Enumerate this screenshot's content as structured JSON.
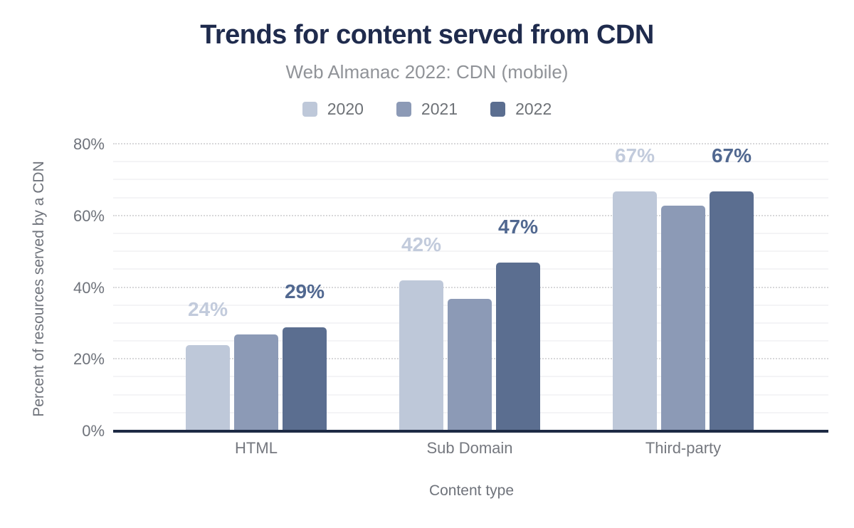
{
  "chart_data": {
    "type": "bar",
    "title": "Trends for content served from CDN",
    "subtitle": "Web Almanac 2022: CDN (mobile)",
    "xlabel": "Content type",
    "ylabel": "Percent of resources served by a CDN",
    "categories": [
      "HTML",
      "Sub Domain",
      "Third-party"
    ],
    "series": [
      {
        "name": "2020",
        "color": "#bec8d9",
        "label_color": "#c2cbdc",
        "show_labels": true,
        "values": [
          24,
          42,
          67
        ],
        "data_labels": [
          "24%",
          "42%",
          "67%"
        ]
      },
      {
        "name": "2021",
        "color": "#8c9ab6",
        "label_color": "#8c9ab6",
        "show_labels": false,
        "values": [
          27,
          37,
          63
        ],
        "data_labels": [
          "",
          "",
          ""
        ]
      },
      {
        "name": "2022",
        "color": "#5b6e90",
        "label_color": "#516890",
        "show_labels": true,
        "values": [
          29,
          47,
          67
        ],
        "data_labels": [
          "29%",
          "47%",
          "67%"
        ]
      }
    ],
    "ylim": [
      0,
      80
    ],
    "y_ticks": [
      {
        "value": 0,
        "label": "0%"
      },
      {
        "value": 20,
        "label": "20%"
      },
      {
        "value": 40,
        "label": "40%"
      },
      {
        "value": 60,
        "label": "60%"
      },
      {
        "value": 80,
        "label": "80%"
      }
    ],
    "grid": {
      "minor_step_pct": 5,
      "major_step_pct": 20,
      "grid_on": true
    },
    "legend_position": "top"
  },
  "colors": {
    "title_text": "#1f2b4d",
    "subtitle_text": "#909398",
    "legend_text": "#6e7277",
    "axis_tick_text": "#6f737b",
    "axis_title_text": "#6f737b",
    "category_text": "#75787f",
    "axis_line": "#1d2a44",
    "minor_gridline": "#f4f4f6",
    "major_gridline": "#d8d8da",
    "background": "#ffffff"
  }
}
